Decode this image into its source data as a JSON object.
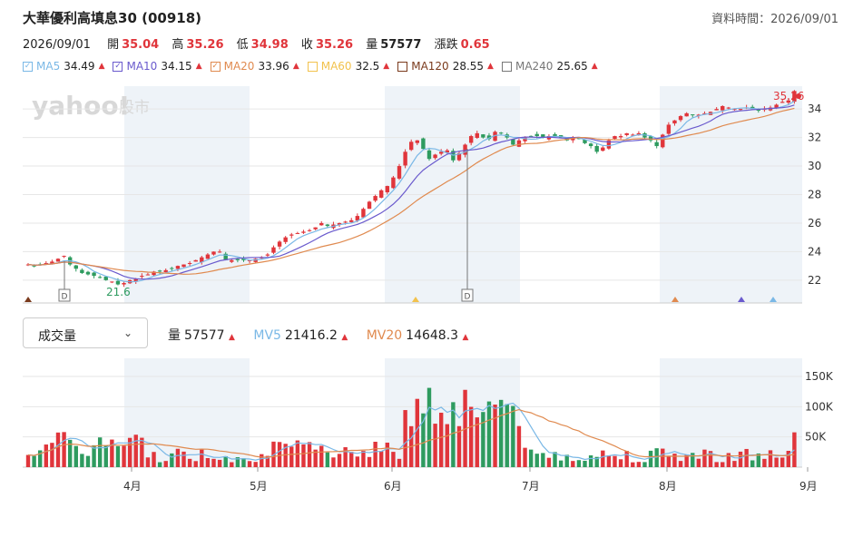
{
  "header": {
    "title": "大華優利高填息30 (00918)",
    "data_time": "資料時間：2026/09/01"
  },
  "quote": {
    "date": "2026/09/01",
    "open_label": "開",
    "open": "35.04",
    "high_label": "高",
    "high": "35.26",
    "low_label": "低",
    "low": "34.98",
    "close_label": "收",
    "close": "35.26",
    "volume_label": "量",
    "volume": "57577",
    "change_label": "漲跌",
    "change": "0.65"
  },
  "ma_legend": [
    {
      "label": "MA5",
      "value": "34.49",
      "color": "#7ab8e6",
      "checked": true
    },
    {
      "label": "MA10",
      "value": "34.15",
      "color": "#6a5acd",
      "checked": true
    },
    {
      "label": "MA20",
      "value": "33.96",
      "color": "#e08a4f",
      "checked": true
    },
    {
      "label": "MA60",
      "value": "32.5",
      "color": "#f2c24d",
      "checked": false
    },
    {
      "label": "MA120",
      "value": "28.55",
      "color": "#7a3a1c",
      "checked": false
    },
    {
      "label": "MA240",
      "value": "25.65",
      "color": "#777777",
      "checked": false
    }
  ],
  "watermark": {
    "brand": "yahoo!",
    "suffix": "股市"
  },
  "price_axis": {
    "ticks": [
      "34",
      "32",
      "30",
      "28",
      "26",
      "24",
      "22"
    ],
    "last_price_label": "35.26",
    "low_annotation": "21.6",
    "dividend_marker": "D"
  },
  "volume_panel": {
    "selector_label": "成交量",
    "vol_label": "量",
    "vol_value": "57577",
    "mv5_label": "MV5",
    "mv5_value": "21416.2",
    "mv20_label": "MV20",
    "mv20_value": "14648.3",
    "ticks": [
      "150K",
      "100K",
      "50K"
    ]
  },
  "x_axis": {
    "months": [
      "4月",
      "5月",
      "6月",
      "7月",
      "8月",
      "9月"
    ]
  },
  "colors": {
    "up": "#e0353b",
    "down": "#2e9b5f",
    "shade": "#eef3f8",
    "grid": "#e6e6e6"
  },
  "chart_data": {
    "type": "candlestick",
    "x": [
      "2026-03-02 to 2026-09-01 (daily)"
    ],
    "price_ylim": [
      20.4,
      35.6
    ],
    "volume_ylim": [
      0,
      180000
    ],
    "close": [
      23.1,
      23.0,
      23.1,
      23.2,
      23.3,
      23.5,
      23.7,
      23.1,
      22.8,
      22.5,
      22.4,
      22.3,
      22.2,
      22.0,
      21.9,
      21.7,
      21.8,
      22.0,
      22.1,
      22.3,
      22.4,
      22.6,
      22.6,
      22.7,
      22.8,
      23.0,
      23.1,
      23.2,
      23.4,
      23.6,
      23.8,
      24.0,
      24.0,
      23.4,
      23.4,
      23.4,
      23.4,
      23.4,
      23.5,
      23.6,
      23.8,
      24.3,
      24.7,
      25.0,
      25.2,
      25.3,
      25.4,
      25.5,
      25.7,
      26.0,
      25.8,
      25.9,
      26.0,
      26.1,
      26.2,
      26.5,
      27.0,
      27.5,
      27.9,
      28.3,
      28.6,
      29.2,
      30.0,
      31.0,
      31.7,
      31.8,
      31.2,
      30.5,
      30.8,
      31.0,
      31.1,
      30.4,
      30.9,
      31.5,
      32.1,
      32.3,
      32.0,
      31.9,
      32.4,
      32.3,
      32.0,
      31.5,
      31.8,
      32.0,
      32.1,
      32.1,
      32.0,
      32.1,
      32.1,
      32.0,
      31.8,
      32.0,
      31.9,
      31.6,
      31.4,
      31.0,
      31.3,
      31.8,
      32.1,
      32.1,
      32.3,
      32.2,
      32.3,
      32.0,
      31.8,
      31.4,
      32.2,
      32.9,
      33.2,
      33.5,
      33.7,
      33.6,
      33.6,
      33.7,
      33.8,
      34.0,
      34.2,
      34.1,
      34.0,
      34.0,
      34.1,
      34.0,
      33.9,
      34.0,
      34.1,
      34.3,
      34.5,
      34.6,
      35.26
    ],
    "ma5_last": 34.49,
    "ma10_last": 34.15,
    "ma20_last": 33.96,
    "volume_last": 57577,
    "mv5_last": 21416.2,
    "mv20_last": 14648.3,
    "ticks_x": [
      "4月",
      "5月",
      "6月",
      "7月",
      "8月",
      "9月"
    ]
  }
}
